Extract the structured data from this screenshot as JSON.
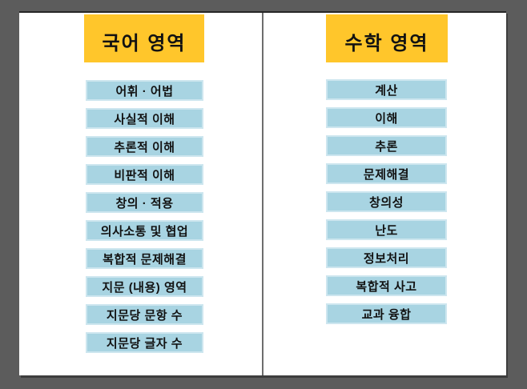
{
  "slide": {
    "background_color": "#5c5c5c",
    "sheet_color": "#ffffff",
    "header_color": "#ffc62b",
    "box_fill_color": "#a8d4e2",
    "box_border_color": "#cde6ef",
    "divider_color": "#6d6d6d",
    "text_color": "#121212"
  },
  "panels": [
    {
      "id": "korean",
      "title": "국어 영역",
      "items": [
        "어휘 · 어법",
        "사실적 이해",
        "추론적 이해",
        "비판적 이해",
        "창의 · 적용",
        "의사소통 및 협업",
        "복합적 문제해결",
        "지문 (내용) 영역",
        "지문당 문항 수",
        "지문당 글자 수"
      ]
    },
    {
      "id": "math",
      "title": "수학 영역",
      "items": [
        "계산",
        "이해",
        "추론",
        "문제해결",
        "창의성",
        "난도",
        "정보처리",
        "복합적 사고",
        "교과 융합"
      ]
    }
  ]
}
